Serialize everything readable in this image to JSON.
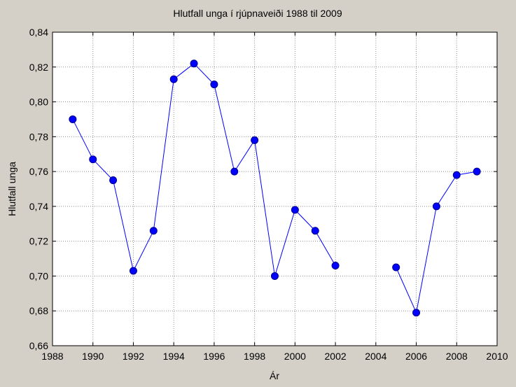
{
  "chart_data": {
    "type": "line",
    "title": "Hlutfall unga í rjúpnaveiði 1988 til 2009",
    "xlabel": "Ár",
    "ylabel": "Hlutfall unga",
    "xlim": [
      1988,
      2010
    ],
    "ylim": [
      0.66,
      0.84
    ],
    "x_ticks": [
      1988,
      1990,
      1992,
      1994,
      1996,
      1998,
      2000,
      2002,
      2004,
      2006,
      2008,
      2010
    ],
    "y_ticks": [
      "0,66",
      "0,68",
      "0,70",
      "0,72",
      "0,74",
      "0,76",
      "0,78",
      "0,80",
      "0,82",
      "0,84"
    ],
    "grid": true,
    "series": [
      {
        "color": "#0000ff",
        "segments": [
          {
            "x": [
              1989,
              1990,
              1991,
              1992,
              1993,
              1994,
              1995,
              1996,
              1997,
              1998,
              1999,
              2000,
              2001,
              2002
            ],
            "y": [
              0.79,
              0.767,
              0.755,
              0.703,
              0.726,
              0.813,
              0.822,
              0.81,
              0.76,
              0.778,
              0.7,
              0.738,
              0.726,
              0.706
            ]
          },
          {
            "x": [
              2005,
              2006,
              2007,
              2008,
              2009
            ],
            "y": [
              0.705,
              0.679,
              0.74,
              0.758,
              0.76
            ]
          }
        ]
      }
    ]
  }
}
